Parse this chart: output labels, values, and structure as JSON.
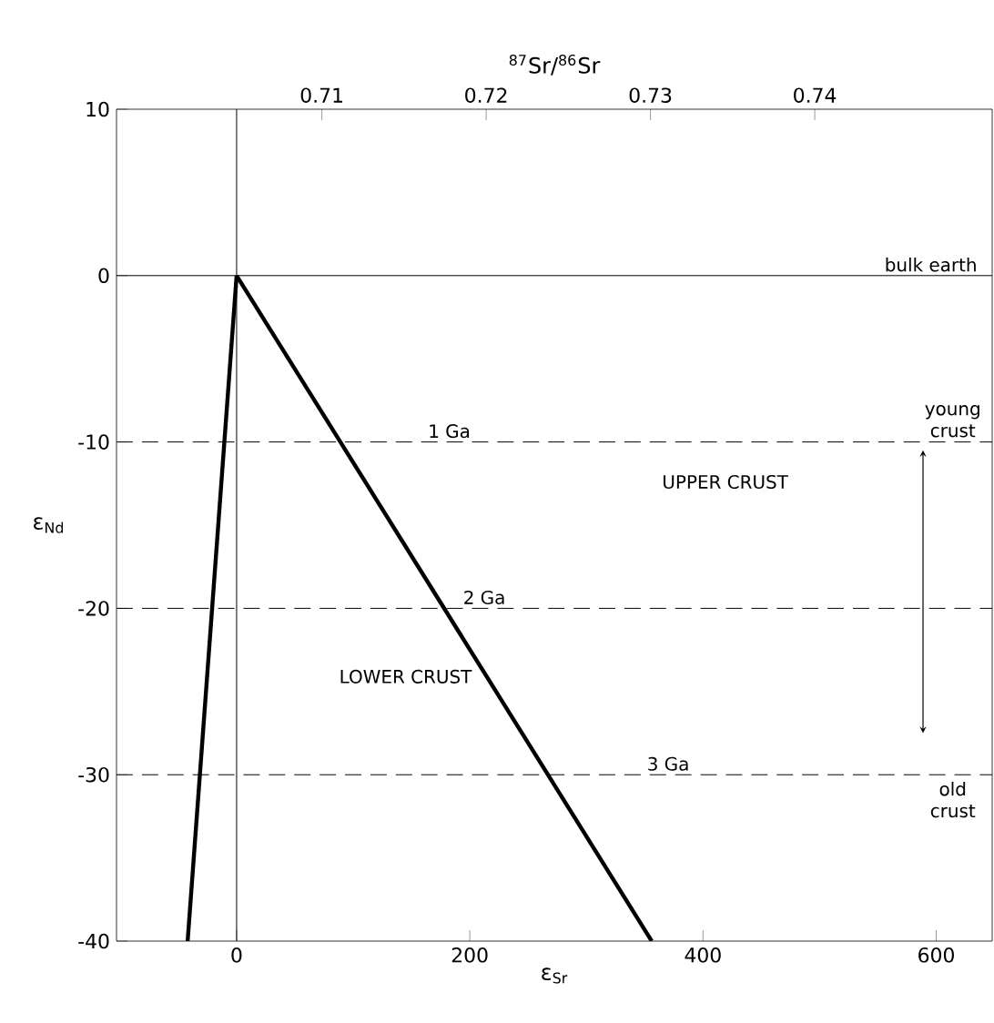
{
  "chart_data": {
    "type": "line",
    "xlabel": "ε$_{Sr}$",
    "ylabel": "ε$_{Nd}$",
    "x2label": "$^{87}$Sr/$^{86}$Sr",
    "xlim": [
      -103,
      648
    ],
    "ylim": [
      -40,
      10
    ],
    "xticks": [
      0,
      200,
      400,
      600
    ],
    "yticks": [
      -40,
      -30,
      -20,
      -10,
      0,
      10
    ],
    "x2lim": [
      0.6975,
      0.7508
    ],
    "x2ticks": [
      0.71,
      0.72,
      0.73,
      0.74
    ],
    "marker": "none",
    "line_style": "solid",
    "grid": false,
    "series": [
      {
        "x": [
          0,
          -42
        ],
        "values": [
          0,
          -40
        ],
        "color": "#000000"
      },
      {
        "x": [
          0,
          356
        ],
        "values": [
          0,
          -40
        ],
        "color": "#000000"
      }
    ],
    "ref_lines": [
      {
        "axis": "y",
        "value": 0,
        "line_style": "solid",
        "label": "bulk earth"
      },
      {
        "axis": "y",
        "value": -10,
        "line_style": "dashed",
        "label": "1 Ga"
      },
      {
        "axis": "y",
        "value": -20,
        "line_style": "dashed",
        "label": "2 Ga"
      },
      {
        "axis": "y",
        "value": -30,
        "line_style": "dashed",
        "label": "3 Ga"
      },
      {
        "axis": "x",
        "value": 0,
        "line_style": "solid"
      }
    ],
    "annotations": [
      "LOWER CRUST",
      "UPPER CRUST",
      "young crust",
      "old crust"
    ]
  }
}
